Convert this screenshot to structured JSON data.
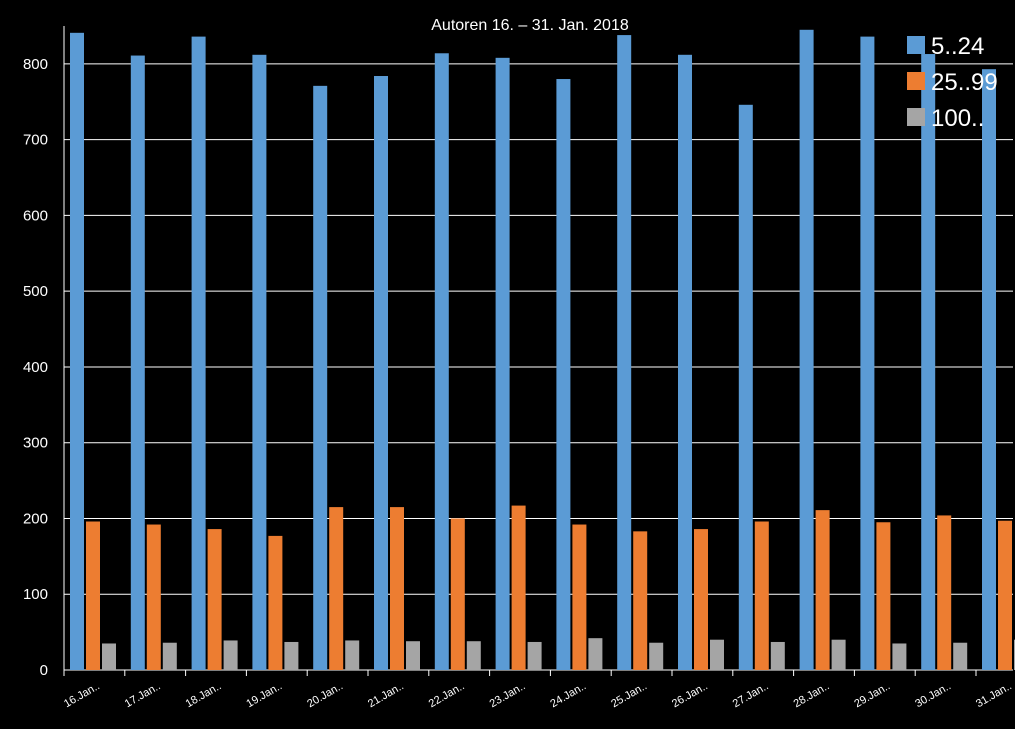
{
  "chart_data": {
    "type": "bar",
    "title": "Autoren 16. – 31. Jan. 2018",
    "xlabel": "",
    "ylabel": "",
    "categories": [
      "16.Jan..",
      "17.Jan..",
      "18.Jan..",
      "19.Jan..",
      "20.Jan..",
      "21.Jan..",
      "22.Jan..",
      "23.Jan..",
      "24.Jan..",
      "25.Jan..",
      "26.Jan..",
      "27.Jan..",
      "28.Jan..",
      "29.Jan..",
      "30.Jan..",
      "31.Jan.."
    ],
    "series": [
      {
        "name": "5..24",
        "color": "#5B9BD5",
        "values": [
          841,
          811,
          836,
          812,
          771,
          784,
          814,
          808,
          780,
          838,
          812,
          746,
          845,
          836,
          813,
          793
        ]
      },
      {
        "name": "25..99",
        "color": "#ED7D31",
        "values": [
          196,
          192,
          186,
          177,
          215,
          215,
          200,
          217,
          192,
          183,
          186,
          196,
          211,
          195,
          204,
          197
        ]
      },
      {
        "name": "100..",
        "color": "#A5A5A5",
        "values": [
          35,
          36,
          39,
          37,
          39,
          38,
          38,
          37,
          42,
          36,
          40,
          37,
          40,
          35,
          36,
          40
        ]
      }
    ],
    "ylim": [
      0,
      850
    ],
    "yticks": [
      0,
      100,
      200,
      300,
      400,
      500,
      600,
      700,
      800
    ],
    "grid": true,
    "legend_position": "top-right"
  }
}
